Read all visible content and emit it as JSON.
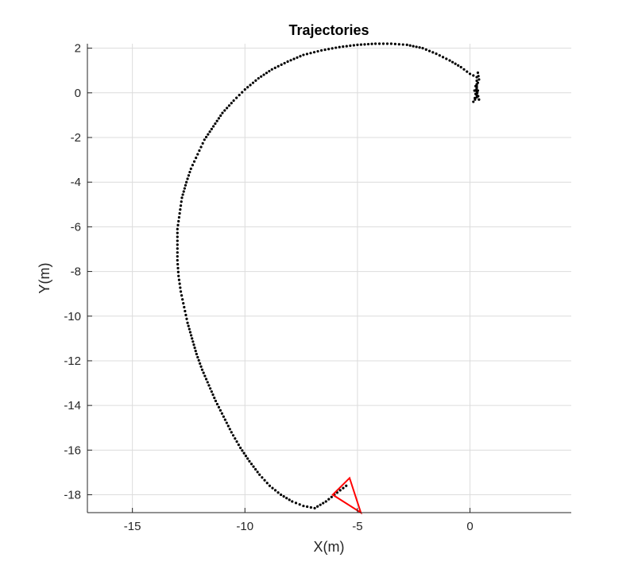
{
  "chart_data": {
    "type": "scatter",
    "title": "Trajectories",
    "xlabel": "X(m)",
    "ylabel": "Y(m)",
    "xlim": [
      -17,
      4.5
    ],
    "ylim": [
      -18.8,
      2.2
    ],
    "grid": true,
    "xticks": [
      -15,
      -10,
      -5,
      0
    ],
    "yticks": [
      2,
      0,
      -2,
      -4,
      -6,
      -8,
      -10,
      -12,
      -14,
      -16,
      -18
    ],
    "xtick_labels": [
      "-15",
      "-10",
      "-5",
      "0"
    ],
    "ytick_labels": [
      "2",
      "0",
      "-2",
      "-4",
      "-6",
      "-8",
      "-10",
      "-12",
      "-14",
      "-16",
      "-18"
    ],
    "colors": {
      "trajectory": "#000000",
      "vehicle": "#ff0000",
      "grid": "#dcdcdc",
      "axis": "#262626"
    },
    "trajectory": {
      "x": [
        0.35,
        0.4,
        0.3,
        0.2,
        0.3,
        0.15,
        0.35,
        0.25,
        0.4,
        0.3,
        0.3,
        0.0,
        -0.4,
        -0.9,
        -1.5,
        -2.1,
        -2.8,
        -3.5,
        -4.2,
        -5.0,
        -5.8,
        -6.6,
        -7.4,
        -8.1,
        -8.8,
        -9.4,
        -10.0,
        -10.5,
        -11.0,
        -11.4,
        -11.8,
        -12.1,
        -12.4,
        -12.6,
        -12.8,
        -12.9,
        -13.0,
        -13.0,
        -13.0,
        -12.95,
        -12.85,
        -12.7,
        -12.55,
        -12.35,
        -12.15,
        -11.9,
        -11.6,
        -11.3,
        -10.95,
        -10.6,
        -10.2,
        -9.8,
        -9.35,
        -8.9,
        -8.4,
        -7.9,
        -7.4,
        -6.9,
        -6.4,
        -5.9,
        -5.5
      ],
      "y": [
        0.9,
        0.6,
        0.3,
        0.1,
        -0.2,
        -0.4,
        0.1,
        0.3,
        -0.3,
        -0.1,
        0.7,
        0.85,
        1.15,
        1.45,
        1.75,
        2.0,
        2.15,
        2.2,
        2.2,
        2.15,
        2.05,
        1.9,
        1.7,
        1.4,
        1.05,
        0.65,
        0.15,
        -0.35,
        -0.9,
        -1.5,
        -2.1,
        -2.75,
        -3.4,
        -4.0,
        -4.7,
        -5.4,
        -6.1,
        -6.8,
        -7.5,
        -8.2,
        -8.9,
        -9.6,
        -10.3,
        -11.0,
        -11.7,
        -12.4,
        -13.1,
        -13.8,
        -14.5,
        -15.2,
        -15.9,
        -16.5,
        -17.1,
        -17.6,
        -18.0,
        -18.3,
        -18.5,
        -18.6,
        -18.3,
        -17.9,
        -17.6
      ]
    },
    "vehicle_marker": {
      "x": [
        -4.85,
        -6.1,
        -5.35
      ],
      "y": [
        -18.8,
        -18.0,
        -17.25
      ]
    }
  }
}
